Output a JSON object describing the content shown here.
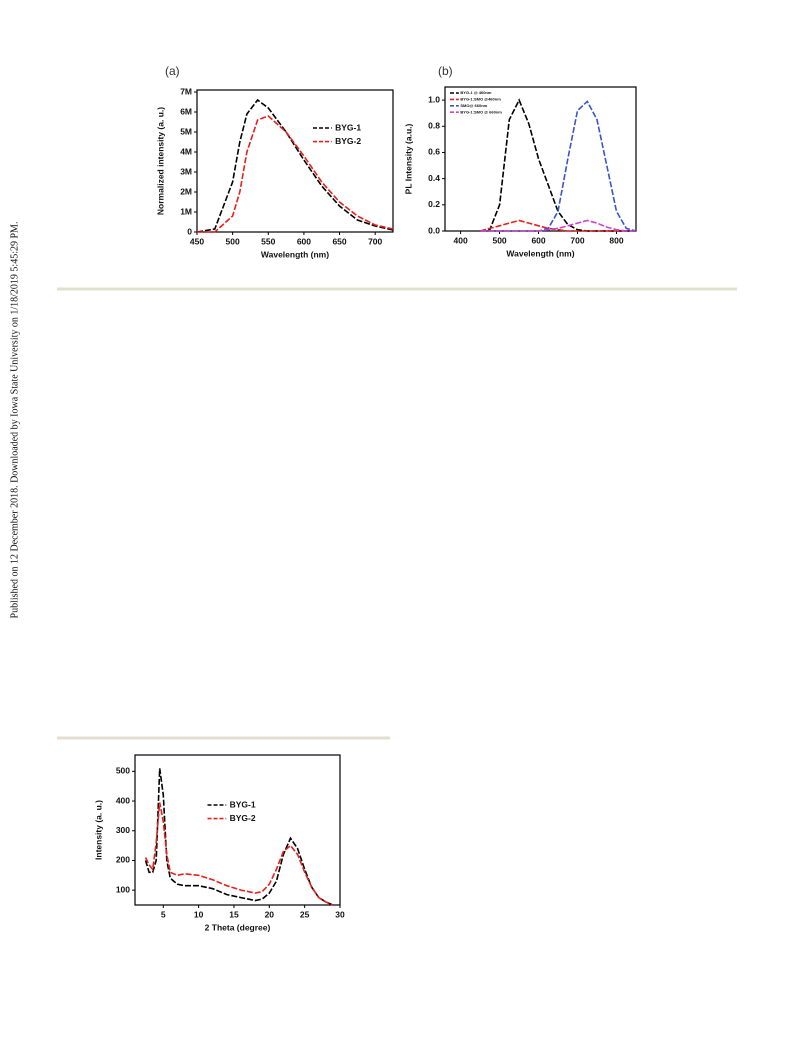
{
  "side_note": "Published on 12 December 2018. Downloaded by Iowa State University on 1/18/2019 5:45:29 PM.",
  "chart_data": [
    {
      "type": "line",
      "panel_label": "(a)",
      "x_label": "Wavelength (nm)",
      "y_label": "Normalized intensity (a. u.)",
      "x": [
        450,
        475,
        500,
        510,
        520,
        535,
        550,
        575,
        600,
        625,
        650,
        675,
        700,
        725
      ],
      "series": [
        {
          "name": "BYG-1",
          "color": "#000000",
          "values": [
            0,
            150000,
            2500000,
            4500000,
            5900000,
            6600000,
            6200000,
            5000000,
            3600000,
            2300000,
            1300000,
            600000,
            300000,
            100000
          ]
        },
        {
          "name": "BYG-2",
          "color": "#e8201c",
          "values": [
            0,
            0,
            800000,
            2000000,
            4000000,
            5600000,
            5800000,
            5000000,
            3800000,
            2500000,
            1500000,
            800000,
            350000,
            150000
          ]
        }
      ],
      "xlim": [
        450,
        725
      ],
      "ylim": [
        0,
        7100000
      ],
      "xticks": [
        450,
        500,
        550,
        600,
        650,
        700
      ],
      "yticks": [
        0,
        {
          "value": 1000000,
          "label": "1M"
        },
        {
          "value": 2000000,
          "label": "2M"
        },
        {
          "value": 3000000,
          "label": "3M"
        },
        {
          "value": 4000000,
          "label": "4M"
        },
        {
          "value": 5000000,
          "label": "5M"
        },
        {
          "value": 6000000,
          "label": "6M"
        },
        {
          "value": 7000000,
          "label": "7M"
        }
      ],
      "legend": "center right"
    },
    {
      "type": "line",
      "panel_label": "(b)",
      "x_label": "Wavelength (nm)",
      "y_label": "PL Intensity (a.u.)",
      "x": [
        450,
        475,
        500,
        525,
        550,
        575,
        600,
        625,
        650,
        675,
        700,
        725,
        750,
        775,
        800,
        825,
        850
      ],
      "series": [
        {
          "name": "BYG-1 @ 460nm",
          "color": "#000000",
          "values": [
            0,
            0.01,
            0.2,
            0.85,
            1.0,
            0.82,
            0.55,
            0.35,
            0.15,
            0.05,
            0.01,
            0,
            0,
            0,
            0,
            0,
            0
          ]
        },
        {
          "name": "BYG-1:SMO @460nm",
          "color": "#e8201c",
          "values": [
            0,
            0.02,
            0.04,
            0.06,
            0.08,
            0.06,
            0.04,
            0.02,
            0.01,
            0,
            0,
            0,
            0,
            0,
            0,
            0,
            0
          ]
        },
        {
          "name": "SMO@ 660nm",
          "color": "#3a55c8",
          "values": [
            0,
            0,
            0,
            0,
            0,
            0,
            0,
            0.02,
            0.15,
            0.55,
            0.92,
            0.99,
            0.85,
            0.5,
            0.15,
            0.02,
            0
          ]
        },
        {
          "name": "BYG-1:SMO @ 660nm",
          "color": "#d040d0",
          "values": [
            0,
            0,
            0,
            0,
            0,
            0,
            0,
            0.01,
            0.02,
            0.04,
            0.06,
            0.08,
            0.06,
            0.03,
            0.01,
            0,
            0
          ]
        }
      ],
      "xlim": [
        360,
        850
      ],
      "ylim": [
        0,
        1.1
      ],
      "xticks": [
        400,
        500,
        600,
        700,
        800
      ],
      "yticks": [
        {
          "value": 0,
          "label": "0.0"
        },
        0.2,
        0.4,
        0.6,
        0.8,
        {
          "value": 1,
          "label": "1.0"
        }
      ],
      "legend": "upper left"
    },
    {
      "type": "line",
      "x_label": "2 Theta (degree)",
      "y_label": "Intensity (a. u.)",
      "x": [
        2.5,
        3,
        3.5,
        4,
        4.5,
        5,
        5.5,
        6,
        7,
        8,
        10,
        12,
        14,
        16,
        18,
        19,
        20,
        21,
        22,
        23,
        24,
        25,
        26,
        27,
        28,
        29
      ],
      "series": [
        {
          "name": "BYG-1",
          "color": "#000000",
          "values": [
            200,
            160,
            160,
            200,
            510,
            420,
            200,
            140,
            120,
            115,
            115,
            105,
            85,
            75,
            65,
            70,
            90,
            130,
            220,
            275,
            240,
            170,
            110,
            75,
            60,
            50
          ]
        },
        {
          "name": "BYG-2",
          "color": "#e8201c",
          "values": [
            210,
            185,
            170,
            260,
            395,
            330,
            220,
            160,
            150,
            155,
            150,
            135,
            115,
            100,
            90,
            95,
            120,
            170,
            230,
            250,
            220,
            160,
            110,
            75,
            60,
            50
          ]
        }
      ],
      "xlim": [
        1,
        30
      ],
      "ylim": [
        50,
        555
      ],
      "xticks": [
        5,
        10,
        15,
        20,
        25,
        30
      ],
      "yticks": [
        100,
        200,
        300,
        400,
        500
      ],
      "legend": "upper center"
    }
  ]
}
